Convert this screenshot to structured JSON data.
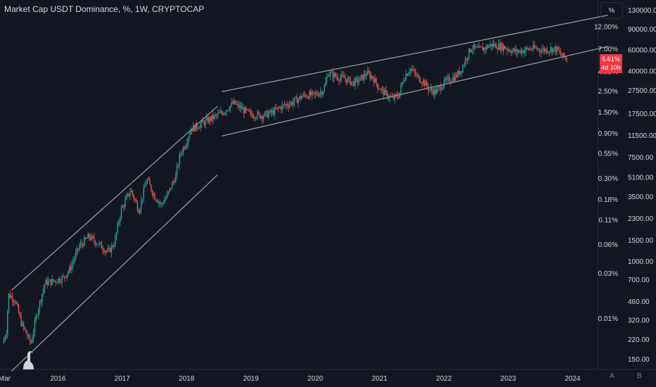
{
  "header": {
    "title": "Market Cap USDT Dominance, %, 1W, CRYPTOCAP"
  },
  "toolbar": {
    "percent_label": "%",
    "auto_label": "A",
    "log_label": "B"
  },
  "price_badge": {
    "value": "5.61%",
    "countdown": "4d 10h",
    "color": "#f23645"
  },
  "colors": {
    "background": "#131722",
    "up": "#26a69a",
    "down": "#ef5350",
    "channel": "#9598a1",
    "grid": "#1e222d",
    "text": "#d1d4dc"
  },
  "chart_data": {
    "type": "candlestick",
    "title": "Market Cap USDT Dominance, %, 1W, CRYPTOCAP",
    "x_ticks": [
      "Mar",
      "2016",
      "2017",
      "2018",
      "2019",
      "2020",
      "2021",
      "2022",
      "2023",
      "2024"
    ],
    "x_range": [
      2015.1,
      2024.4
    ],
    "log_scale": true,
    "grid": false,
    "left_axis_percent": {
      "labels": [
        "12.00%",
        "7.00%",
        "4.00%",
        "2.50%",
        "1.50%",
        "0.90%",
        "0.55%",
        "0.30%",
        "0.18%",
        "0.11%",
        "0.06%",
        "0.03%",
        "0.01%"
      ],
      "values": [
        12.0,
        7.0,
        4.0,
        2.5,
        1.5,
        0.9,
        0.55,
        0.3,
        0.18,
        0.11,
        0.06,
        0.03,
        0.01
      ]
    },
    "right_axis_value": {
      "labels": [
        "130000.00",
        "90000.00",
        "60000.00",
        "40000.00",
        "27500.00",
        "17500.00",
        "11500.00",
        "7500.00",
        "5100.00",
        "3500.00",
        "2300.00",
        "1500.00",
        "1000.00",
        "700.00",
        "460.00",
        "320.00",
        "220.00",
        "150.00"
      ],
      "values": [
        130000,
        90000,
        60000,
        40000,
        27500,
        17500,
        11500,
        7500,
        5100,
        3500,
        2300,
        1500,
        1000,
        700,
        460,
        320,
        220,
        150
      ]
    },
    "series": [
      {
        "points": [
          [
            2015.16,
            0.0055
          ],
          [
            2015.22,
            0.0075
          ],
          [
            2015.25,
            0.018
          ],
          [
            2015.35,
            0.016
          ],
          [
            2015.45,
            0.009
          ],
          [
            2015.6,
            0.0055
          ],
          [
            2015.7,
            0.012
          ],
          [
            2015.82,
            0.024
          ],
          [
            2015.95,
            0.025
          ],
          [
            2016.1,
            0.027
          ],
          [
            2016.2,
            0.033
          ],
          [
            2016.35,
            0.058
          ],
          [
            2016.5,
            0.074
          ],
          [
            2016.7,
            0.058
          ],
          [
            2016.8,
            0.05
          ],
          [
            2016.9,
            0.064
          ],
          [
            2017.0,
            0.14
          ],
          [
            2017.15,
            0.23
          ],
          [
            2017.28,
            0.14
          ],
          [
            2017.4,
            0.3
          ],
          [
            2017.5,
            0.21
          ],
          [
            2017.62,
            0.16
          ],
          [
            2017.72,
            0.2
          ],
          [
            2017.85,
            0.32
          ],
          [
            2017.92,
            0.55
          ],
          [
            2018.0,
            0.7
          ],
          [
            2018.08,
            1.0
          ],
          [
            2018.2,
            1.1
          ],
          [
            2018.35,
            1.25
          ],
          [
            2018.45,
            1.35
          ],
          [
            2018.6,
            1.55
          ],
          [
            2018.75,
            1.9
          ],
          [
            2018.85,
            1.7
          ],
          [
            2019.0,
            1.45
          ],
          [
            2019.2,
            1.4
          ],
          [
            2019.35,
            1.5
          ],
          [
            2019.5,
            1.75
          ],
          [
            2019.65,
            1.9
          ],
          [
            2019.85,
            2.3
          ],
          [
            2020.0,
            2.3
          ],
          [
            2020.15,
            2.6
          ],
          [
            2020.22,
            4.0
          ],
          [
            2020.35,
            3.6
          ],
          [
            2020.5,
            3.4
          ],
          [
            2020.6,
            3.1
          ],
          [
            2020.7,
            3.3
          ],
          [
            2020.82,
            3.9
          ],
          [
            2020.92,
            3.5
          ],
          [
            2021.0,
            2.8
          ],
          [
            2021.1,
            2.4
          ],
          [
            2021.22,
            2.1
          ],
          [
            2021.32,
            2.3
          ],
          [
            2021.4,
            3.6
          ],
          [
            2021.5,
            4.4
          ],
          [
            2021.6,
            3.6
          ],
          [
            2021.7,
            3.2
          ],
          [
            2021.8,
            2.6
          ],
          [
            2021.9,
            2.5
          ],
          [
            2022.0,
            3.0
          ],
          [
            2022.1,
            3.4
          ],
          [
            2022.2,
            3.6
          ],
          [
            2022.3,
            4.4
          ],
          [
            2022.38,
            6.0
          ],
          [
            2022.45,
            7.4
          ],
          [
            2022.55,
            6.9
          ],
          [
            2022.65,
            7.2
          ],
          [
            2022.75,
            7.8
          ],
          [
            2022.85,
            7.6
          ],
          [
            2022.95,
            7.4
          ],
          [
            2023.05,
            6.9
          ],
          [
            2023.15,
            6.6
          ],
          [
            2023.25,
            6.8
          ],
          [
            2023.4,
            7.2
          ],
          [
            2023.5,
            7.0
          ],
          [
            2023.6,
            6.9
          ],
          [
            2023.7,
            7.1
          ],
          [
            2023.78,
            6.9
          ],
          [
            2023.85,
            6.0
          ],
          [
            2023.92,
            5.6
          ]
        ]
      }
    ],
    "channels": [
      {
        "from": [
          2015.28,
          0.02
        ],
        "to": [
          2018.48,
          1.75
        ]
      },
      {
        "from": [
          2015.28,
          0.0028
        ],
        "to": [
          2018.48,
          0.33
        ]
      },
      {
        "from": [
          2018.55,
          2.5
        ],
        "to": [
          2024.55,
          16.0
        ]
      },
      {
        "from": [
          2018.55,
          0.85
        ],
        "to": [
          2024.55,
          7.5
        ]
      }
    ]
  }
}
